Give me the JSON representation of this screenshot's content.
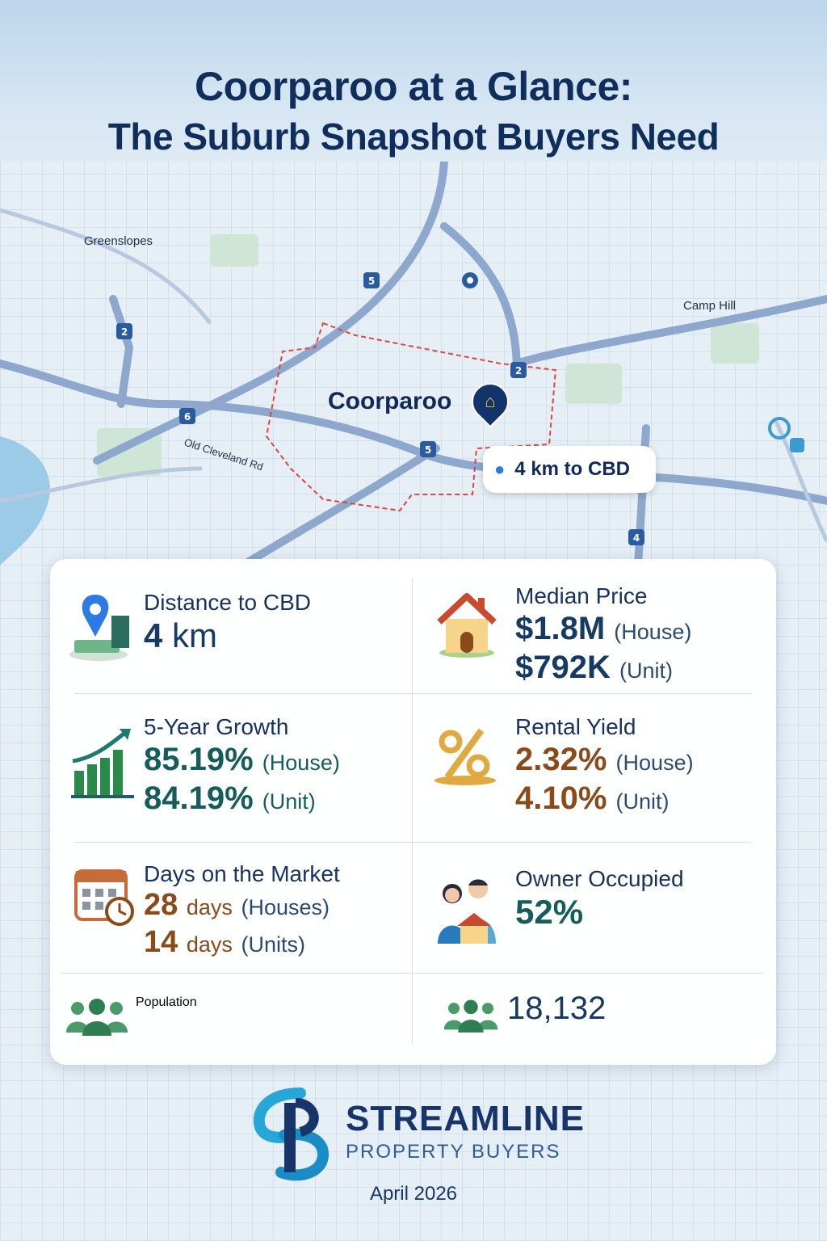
{
  "header": {
    "title_line1": "Coorparoo at a Glance:",
    "title_line2": "The Suburb Snapshot Buyers Need"
  },
  "map": {
    "suburb": "Coorparoo",
    "labels": [
      "Greenslopes",
      "Camp Hill",
      "Old Cleveland Rd"
    ],
    "route_badges": [
      "5",
      "2",
      "6",
      "5",
      "2",
      "4"
    ],
    "cbd_callout": "4 km to CBD"
  },
  "stats": {
    "distance": {
      "label": "Distance to CBD",
      "value": "4",
      "unit": "km",
      "icon": "map-pin-icon"
    },
    "median_price": {
      "label": "Median Price",
      "house_value": "$1.8M",
      "house_tag": "(House)",
      "unit_value": "$792K",
      "unit_tag": "(Unit)",
      "icon": "house-icon"
    },
    "growth": {
      "label": "5-Year Growth",
      "house_value": "85.19%",
      "house_tag": "(House)",
      "unit_value": "84.19%",
      "unit_tag": "(Unit)",
      "icon": "growth-chart-icon"
    },
    "rental_yield": {
      "label": "Rental Yield",
      "house_value": "2.32%",
      "house_tag": "(House)",
      "unit_value": "4.10%",
      "unit_tag": "(Unit)",
      "icon": "percent-icon"
    },
    "days_on_market": {
      "label": "Days on the Market",
      "house_value": "28",
      "house_word": "days",
      "house_tag": "(Houses)",
      "unit_value": "14",
      "unit_word": "days",
      "unit_tag": "(Units)",
      "icon": "calendar-clock-icon"
    },
    "owner_occupied": {
      "label": "Owner Occupied",
      "value": "52%",
      "icon": "family-home-icon"
    },
    "population": {
      "label": "Population",
      "value": "18,132",
      "icon": "people-group-icon"
    }
  },
  "footer": {
    "brand_name": "STREAMLINE",
    "brand_sub": "PROPERTY BUYERS",
    "date": "April 2026"
  },
  "colors": {
    "navy": "#163a63",
    "teal": "#155d5a",
    "brown": "#8a4a1a",
    "suburb_boundary": "#e0443a"
  }
}
